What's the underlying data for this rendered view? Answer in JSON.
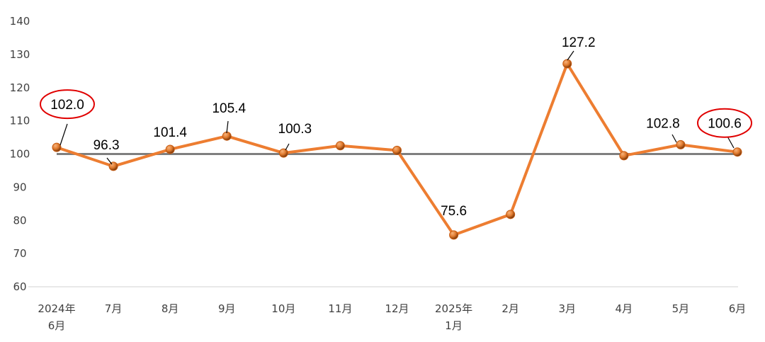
{
  "chart_data": {
    "type": "line",
    "categories": [
      [
        "2024年",
        "6月"
      ],
      [
        "7月"
      ],
      [
        "8月"
      ],
      [
        "9月"
      ],
      [
        "10月"
      ],
      [
        "11月"
      ],
      [
        "12月"
      ],
      [
        "2025年",
        "1月"
      ],
      [
        "2月"
      ],
      [
        "3月"
      ],
      [
        "4月"
      ],
      [
        "5月"
      ],
      [
        "6月"
      ]
    ],
    "values": [
      102.0,
      96.3,
      101.4,
      105.4,
      100.3,
      102.5,
      101.1,
      75.6,
      81.8,
      127.2,
      99.5,
      102.8,
      100.6
    ],
    "data_labels": [
      "102.0",
      "96.3",
      "101.4",
      "105.4",
      "100.3",
      null,
      null,
      "75.6",
      null,
      "127.2",
      null,
      "102.8",
      "100.6"
    ],
    "highlighted_labels": [
      0,
      12
    ],
    "reference_line": 100,
    "ylim": [
      60,
      140
    ],
    "yticks": [
      60,
      70,
      80,
      90,
      100,
      110,
      120,
      130,
      140
    ],
    "grid": false,
    "legend": "none",
    "title": "",
    "xlabel": "",
    "ylabel": "",
    "colors": {
      "line": "#ED7D31",
      "marker": "#C55A11",
      "reference": "#7F7F7F",
      "axis": "#D9D9D9",
      "highlight": "#E00000"
    }
  }
}
